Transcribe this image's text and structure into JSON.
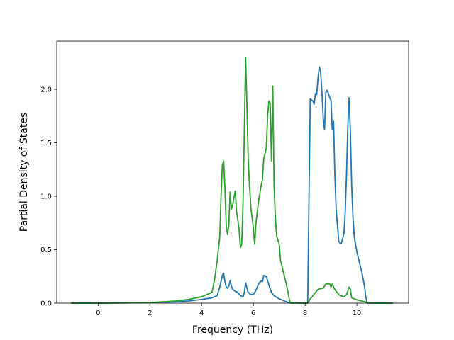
{
  "chart_data": {
    "type": "line",
    "xlabel": "Frequency (THz)",
    "ylabel": "Partial Density of States",
    "xlim": [
      -1.6,
      12.0
    ],
    "ylim": [
      0.0,
      2.45
    ],
    "grid": false,
    "x_ticks": [
      0,
      2,
      4,
      6,
      8,
      10
    ],
    "y_ticks": [
      0.0,
      0.5,
      1.0,
      1.5,
      2.0
    ],
    "x_tick_labels": [
      "0",
      "2",
      "4",
      "6",
      "8",
      "10"
    ],
    "y_tick_labels": [
      "0.0",
      "0.5",
      "1.0",
      "1.5",
      "2.0"
    ],
    "series": [
      {
        "color": "#1f77b4",
        "points": [
          [
            -1.05,
            0.0
          ],
          [
            0.0,
            0.0
          ],
          [
            1.0,
            0.002
          ],
          [
            2.0,
            0.005
          ],
          [
            3.0,
            0.012
          ],
          [
            3.5,
            0.02
          ],
          [
            4.0,
            0.035
          ],
          [
            4.4,
            0.05
          ],
          [
            4.6,
            0.07
          ],
          [
            4.7,
            0.15
          ],
          [
            4.8,
            0.26
          ],
          [
            4.85,
            0.28
          ],
          [
            4.9,
            0.2
          ],
          [
            4.95,
            0.15
          ],
          [
            5.0,
            0.14
          ],
          [
            5.05,
            0.16
          ],
          [
            5.1,
            0.21
          ],
          [
            5.15,
            0.16
          ],
          [
            5.2,
            0.13
          ],
          [
            5.3,
            0.11
          ],
          [
            5.4,
            0.1
          ],
          [
            5.5,
            0.07
          ],
          [
            5.6,
            0.06
          ],
          [
            5.65,
            0.1
          ],
          [
            5.7,
            0.19
          ],
          [
            5.75,
            0.14
          ],
          [
            5.8,
            0.1
          ],
          [
            5.9,
            0.08
          ],
          [
            6.0,
            0.08
          ],
          [
            6.1,
            0.12
          ],
          [
            6.2,
            0.18
          ],
          [
            6.3,
            0.21
          ],
          [
            6.35,
            0.2
          ],
          [
            6.4,
            0.26
          ],
          [
            6.5,
            0.25
          ],
          [
            6.6,
            0.17
          ],
          [
            6.7,
            0.1
          ],
          [
            6.8,
            0.07
          ],
          [
            7.0,
            0.04
          ],
          [
            7.2,
            0.02
          ],
          [
            7.35,
            0.005
          ],
          [
            8.0,
            0.0
          ],
          [
            8.1,
            0.0
          ],
          [
            8.15,
            1.0
          ],
          [
            8.2,
            1.91
          ],
          [
            8.3,
            1.89
          ],
          [
            8.35,
            1.86
          ],
          [
            8.4,
            1.96
          ],
          [
            8.45,
            1.95
          ],
          [
            8.5,
            2.11
          ],
          [
            8.55,
            2.21
          ],
          [
            8.6,
            2.16
          ],
          [
            8.65,
            1.97
          ],
          [
            8.7,
            1.73
          ],
          [
            8.75,
            1.62
          ],
          [
            8.8,
            1.97
          ],
          [
            8.85,
            1.99
          ],
          [
            8.9,
            1.96
          ],
          [
            8.95,
            1.92
          ],
          [
            9.0,
            1.9
          ],
          [
            9.05,
            1.62
          ],
          [
            9.1,
            1.7
          ],
          [
            9.15,
            1.2
          ],
          [
            9.2,
            0.88
          ],
          [
            9.3,
            0.58
          ],
          [
            9.35,
            0.56
          ],
          [
            9.4,
            0.56
          ],
          [
            9.5,
            0.65
          ],
          [
            9.55,
            0.85
          ],
          [
            9.6,
            1.2
          ],
          [
            9.65,
            1.65
          ],
          [
            9.7,
            1.92
          ],
          [
            9.75,
            1.6
          ],
          [
            9.8,
            1.1
          ],
          [
            9.85,
            0.8
          ],
          [
            9.9,
            0.62
          ],
          [
            10.0,
            0.48
          ],
          [
            10.1,
            0.38
          ],
          [
            10.2,
            0.28
          ],
          [
            10.3,
            0.15
          ],
          [
            10.35,
            0.05
          ],
          [
            10.4,
            0.0
          ],
          [
            11.0,
            0.0
          ],
          [
            11.4,
            0.0
          ]
        ]
      },
      {
        "color": "#2ca02c",
        "points": [
          [
            -1.05,
            0.0
          ],
          [
            0.0,
            0.0
          ],
          [
            1.0,
            0.002
          ],
          [
            2.0,
            0.006
          ],
          [
            3.0,
            0.02
          ],
          [
            3.5,
            0.035
          ],
          [
            4.0,
            0.06
          ],
          [
            4.4,
            0.1
          ],
          [
            4.5,
            0.22
          ],
          [
            4.6,
            0.4
          ],
          [
            4.7,
            0.62
          ],
          [
            4.75,
            1.0
          ],
          [
            4.8,
            1.29
          ],
          [
            4.85,
            1.33
          ],
          [
            4.9,
            1.08
          ],
          [
            4.95,
            0.73
          ],
          [
            5.0,
            0.64
          ],
          [
            5.05,
            0.72
          ],
          [
            5.1,
            1.04
          ],
          [
            5.15,
            0.88
          ],
          [
            5.2,
            0.92
          ],
          [
            5.3,
            1.05
          ],
          [
            5.35,
            0.85
          ],
          [
            5.4,
            0.78
          ],
          [
            5.45,
            0.68
          ],
          [
            5.5,
            0.52
          ],
          [
            5.55,
            0.55
          ],
          [
            5.6,
            0.93
          ],
          [
            5.65,
            1.6
          ],
          [
            5.7,
            2.3
          ],
          [
            5.75,
            1.85
          ],
          [
            5.8,
            1.35
          ],
          [
            5.85,
            1.1
          ],
          [
            5.9,
            0.9
          ],
          [
            6.0,
            0.7
          ],
          [
            6.05,
            0.55
          ],
          [
            6.1,
            0.75
          ],
          [
            6.2,
            0.95
          ],
          [
            6.3,
            1.1
          ],
          [
            6.35,
            1.15
          ],
          [
            6.4,
            1.35
          ],
          [
            6.5,
            1.45
          ],
          [
            6.55,
            1.75
          ],
          [
            6.6,
            1.89
          ],
          [
            6.65,
            1.87
          ],
          [
            6.7,
            1.33
          ],
          [
            6.75,
            2.03
          ],
          [
            6.8,
            1.1
          ],
          [
            6.85,
            0.8
          ],
          [
            6.9,
            0.63
          ],
          [
            7.0,
            0.55
          ],
          [
            7.05,
            0.4
          ],
          [
            7.2,
            0.25
          ],
          [
            7.3,
            0.15
          ],
          [
            7.4,
            0.02
          ],
          [
            7.45,
            0.0
          ],
          [
            8.0,
            0.0
          ],
          [
            8.1,
            0.0
          ],
          [
            8.2,
            0.04
          ],
          [
            8.4,
            0.1
          ],
          [
            8.5,
            0.13
          ],
          [
            8.7,
            0.14
          ],
          [
            8.8,
            0.18
          ],
          [
            8.95,
            0.18
          ],
          [
            9.0,
            0.15
          ],
          [
            9.05,
            0.18
          ],
          [
            9.1,
            0.15
          ],
          [
            9.2,
            0.11
          ],
          [
            9.35,
            0.07
          ],
          [
            9.5,
            0.06
          ],
          [
            9.6,
            0.08
          ],
          [
            9.7,
            0.15
          ],
          [
            9.75,
            0.13
          ],
          [
            9.8,
            0.05
          ],
          [
            9.9,
            0.04
          ],
          [
            10.0,
            0.03
          ],
          [
            10.2,
            0.02
          ],
          [
            10.4,
            0.005
          ],
          [
            10.5,
            0.0
          ],
          [
            11.0,
            0.0
          ],
          [
            11.4,
            0.0
          ]
        ]
      }
    ]
  }
}
